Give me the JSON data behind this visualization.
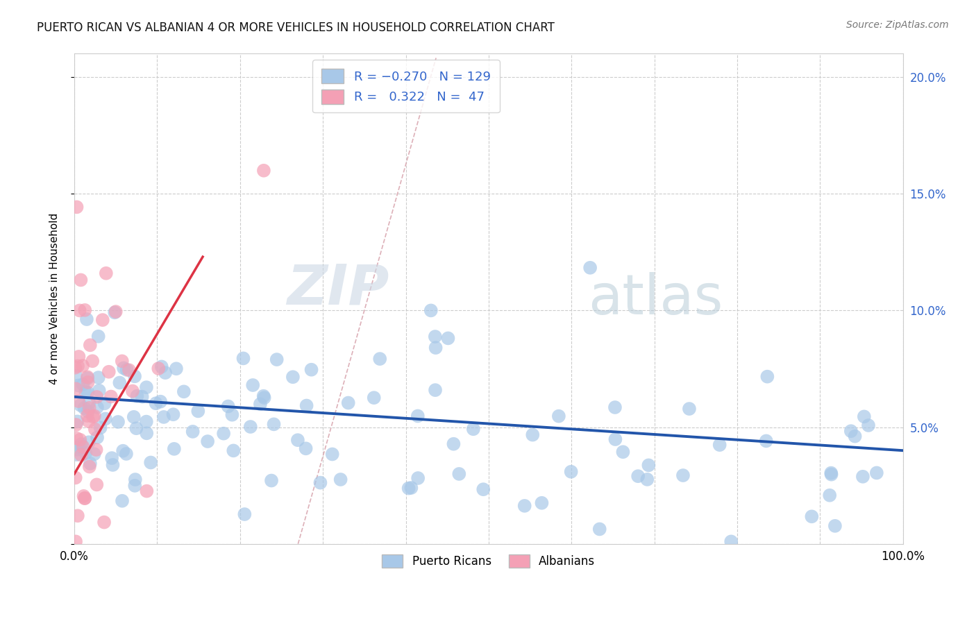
{
  "title": "PUERTO RICAN VS ALBANIAN 4 OR MORE VEHICLES IN HOUSEHOLD CORRELATION CHART",
  "source": "Source: ZipAtlas.com",
  "ylabel": "4 or more Vehicles in Household",
  "xlim": [
    0.0,
    1.0
  ],
  "ylim": [
    0.0,
    0.21
  ],
  "xticks": [
    0.0,
    0.1,
    0.2,
    0.3,
    0.4,
    0.5,
    0.6,
    0.7,
    0.8,
    0.9,
    1.0
  ],
  "yticks": [
    0.0,
    0.05,
    0.1,
    0.15,
    0.2
  ],
  "blue_R": -0.27,
  "blue_N": 129,
  "pink_R": 0.322,
  "pink_N": 47,
  "blue_color": "#a8c8e8",
  "pink_color": "#f4a0b5",
  "blue_line_color": "#2255aa",
  "pink_line_color": "#dd3344",
  "diag_color": "#ddb0b8",
  "grid_color": "#cccccc",
  "background_color": "#ffffff",
  "watermark_zip": "ZIP",
  "watermark_atlas": "atlas",
  "watermark_color_zip": "#c8d8e8",
  "watermark_color_atlas": "#c8d4e0",
  "title_fontsize": 13,
  "legend_label_blue": "Puerto Ricans",
  "legend_label_pink": "Albanians"
}
